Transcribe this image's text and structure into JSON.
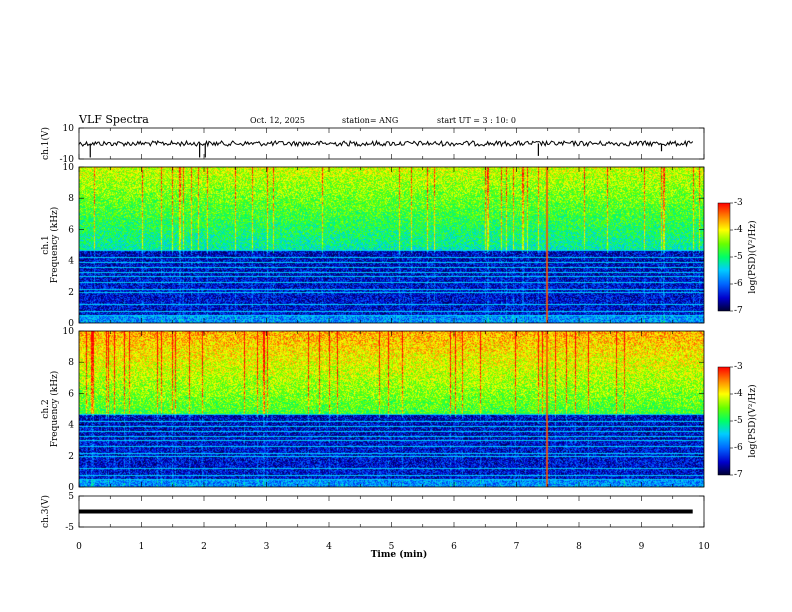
{
  "header": {
    "title": "VLF Spectra",
    "date": "Oct. 12, 2025",
    "station": "station= ANG",
    "start": "start UT = 3 : 10: 0"
  },
  "chart_data": {
    "type": "heatmap",
    "xlabel": "Time (min)",
    "xlim": [
      0,
      10
    ],
    "xticks": [
      "0",
      "1",
      "2",
      "3",
      "4",
      "5",
      "6",
      "7",
      "8",
      "9",
      "10"
    ],
    "panels": [
      {
        "id": "ch1-volt",
        "kind": "line",
        "ylabel": "ch.1(V)",
        "ylim": [
          -10,
          10
        ],
        "yticks": [
          "10",
          "-10"
        ],
        "baseline": 0,
        "spikes": [
          {
            "t": 0.18,
            "v": -9
          },
          {
            "t": 1.93,
            "v": -9
          },
          {
            "t": 2.02,
            "v": -9
          },
          {
            "t": 7.35,
            "v": -8
          },
          {
            "t": 9.32,
            "v": -5
          }
        ]
      },
      {
        "id": "ch1-spec",
        "kind": "spectrogram",
        "ylabel": "Frequency (kHz)",
        "ylabel2": "ch.1",
        "ylim": [
          0,
          10
        ],
        "yticks": [
          "0",
          "2",
          "4",
          "6",
          "8",
          "10"
        ],
        "colorbar": {
          "label": "log(PSD)(V²/Hz)",
          "range": [
            -7,
            -3
          ],
          "ticks": [
            "-3",
            "-4",
            "-5",
            "-6",
            "-7"
          ]
        }
      },
      {
        "id": "ch2-spec",
        "kind": "spectrogram",
        "ylabel": "Frequency (kHz)",
        "ylabel2": "ch.2",
        "ylim": [
          0,
          10
        ],
        "yticks": [
          "0",
          "2",
          "4",
          "6",
          "8",
          "10"
        ],
        "colorbar": {
          "label": "log(PSD)(V²/Hz)",
          "range": [
            -7,
            -3
          ],
          "ticks": [
            "-3",
            "-4",
            "-5",
            "-6",
            "-7"
          ]
        }
      },
      {
        "id": "ch3-volt",
        "kind": "line",
        "ylabel": "ch.3(V)",
        "ylim": [
          -5,
          5
        ],
        "yticks": [
          "5",
          "-5"
        ],
        "baseline": 0,
        "spikes": []
      }
    ]
  }
}
